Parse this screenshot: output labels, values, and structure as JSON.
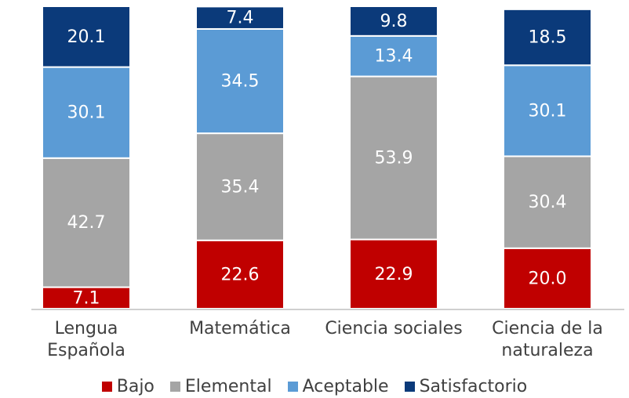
{
  "chart_data": {
    "type": "stacked_bar",
    "categories": [
      "Lengua\nEspañola",
      "Matemática",
      "Ciencia sociales",
      "Ciencia de la\nnaturaleza"
    ],
    "series": [
      {
        "name": "Bajo",
        "color": "#c00000",
        "values": [
          7.1,
          22.6,
          22.9,
          20.0
        ],
        "value_labels": [
          "7.1",
          "22.6",
          "22.9",
          "20.0"
        ]
      },
      {
        "name": "Elemental",
        "color": "#a5a5a5",
        "values": [
          42.7,
          35.4,
          53.9,
          30.4
        ]
      },
      {
        "name": "Aceptable",
        "color": "#5b9bd5",
        "values": [
          30.1,
          34.5,
          13.4,
          30.1
        ]
      },
      {
        "name": "Satisfactorio",
        "color": "#0b3a7a",
        "values": [
          20.1,
          7.4,
          9.8,
          18.5
        ]
      }
    ],
    "ylim": [
      0,
      100
    ]
  }
}
